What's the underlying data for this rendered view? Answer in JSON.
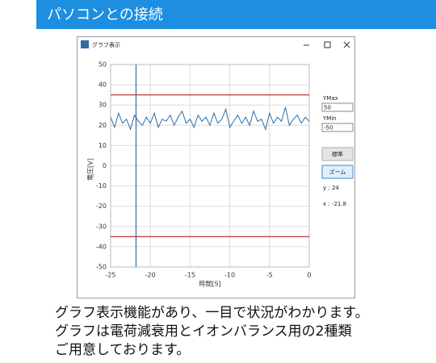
{
  "header": {
    "title": "パソコンとの接続"
  },
  "window": {
    "title": "グラフ表示",
    "panel": {
      "ymax_label": "YMax",
      "ymax_value": "50",
      "ymin_label": "YMin",
      "ymin_value": "-50",
      "button_standard": "標準",
      "button_zoom": "ズーム",
      "readout_y": "y : 24",
      "readout_x": "x : -21.8"
    }
  },
  "chart_data": {
    "type": "line",
    "xlabel": "時間[S]",
    "ylabel": "電圧[V]",
    "xlim": [
      -25,
      0
    ],
    "ylim": [
      -50,
      50
    ],
    "xticks": [
      -25,
      -20,
      -15,
      -10,
      -5,
      0
    ],
    "yticks": [
      -50,
      -40,
      -30,
      -20,
      -10,
      0,
      10,
      20,
      30,
      40,
      50
    ],
    "grid": true,
    "hlines": [
      {
        "value": 35,
        "color": "#c0392b"
      },
      {
        "value": -35,
        "color": "#c0392b"
      }
    ],
    "cursor_x": -21.8,
    "cursor_color": "#2e6da4",
    "x": [
      -25,
      -24.5,
      -24,
      -23.5,
      -23,
      -22.5,
      -22,
      -21.5,
      -21,
      -20.5,
      -20,
      -19.5,
      -19,
      -18.5,
      -18,
      -17.5,
      -17,
      -16.5,
      -16,
      -15.5,
      -15,
      -14.5,
      -14,
      -13.5,
      -13,
      -12.5,
      -12,
      -11.5,
      -11,
      -10.5,
      -10,
      -9.5,
      -9,
      -8.5,
      -8,
      -7.5,
      -7,
      -6.5,
      -6,
      -5.5,
      -5,
      -4.5,
      -4,
      -3.5,
      -3,
      -2.5,
      -2,
      -1.5,
      -1,
      -0.5,
      0
    ],
    "series": [
      {
        "color": "#2e6da4",
        "values": [
          24,
          19,
          26,
          21,
          23,
          18,
          25,
          22,
          20,
          24,
          21,
          26,
          19,
          23,
          22,
          25,
          20,
          24,
          27,
          21,
          23,
          19,
          25,
          22,
          24,
          20,
          26,
          21,
          23,
          28,
          19,
          22,
          25,
          21,
          24,
          20,
          27,
          22,
          23,
          18,
          26,
          21,
          24,
          22,
          29,
          20,
          23,
          25,
          21,
          24,
          22
        ]
      }
    ]
  },
  "caption": {
    "lines": [
      "グラフ表示機能があり、一目で状況がわかります。",
      "グラフは電荷減衰用とイオンバランス用の2種類",
      "ご用意しております。"
    ]
  }
}
